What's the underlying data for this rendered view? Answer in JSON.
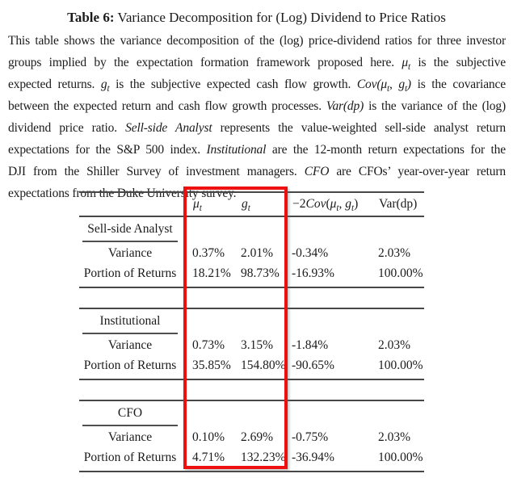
{
  "title": {
    "label": "Table 6:",
    "text": " Variance Decomposition for (Log) Dividend to Price Ratios"
  },
  "description": {
    "lines": [
      [
        {
          "text": "This table shows the variance decomposition of the (log) price-dividend ratios for three investor"
        }
      ],
      [
        {
          "text": "groups implied by the expectation formation framework proposed here. "
        },
        {
          "base": "μ",
          "sub": "t",
          "italic": true
        },
        {
          "text": " is the subjective"
        }
      ],
      [
        {
          "text": "expected returns. "
        },
        {
          "base": "g",
          "sub": "t",
          "italic": true
        },
        {
          "text": " is the subjective expected cash flow growth. "
        },
        {
          "text": "Cov(",
          "italic": true
        },
        {
          "base": "μ",
          "sub": "t",
          "italic": true
        },
        {
          "text": ", ",
          "italic": true
        },
        {
          "base": "g",
          "sub": "t",
          "italic": true
        },
        {
          "text": ")",
          "italic": true
        },
        {
          "text": " is the covariance"
        }
      ],
      [
        {
          "text": "between the expected return and cash flow growth processes. "
        },
        {
          "text": "Var(dp)",
          "italic": true
        },
        {
          "text": " is the variance of the (log)"
        }
      ],
      [
        {
          "text": "dividend price ratio. "
        },
        {
          "text": "Sell-side Analyst",
          "italic": true
        },
        {
          "text": " represents the value-weighted sell-side analyst return"
        }
      ],
      [
        {
          "text": "expectations for the S&P 500 index. "
        },
        {
          "text": "Institutional",
          "italic": true
        },
        {
          "text": " are the 12-month return expectations for the"
        }
      ],
      [
        {
          "text": "DJI from the Shiller Survey of investment managers. "
        },
        {
          "text": "CFO",
          "italic": true
        },
        {
          "text": " are CFOs’ year-over-year return"
        }
      ],
      [
        {
          "text": "expectations from the Duke University survey."
        }
      ]
    ]
  },
  "table": {
    "headers": [
      [],
      [
        {
          "base": "μ",
          "sub": "t",
          "italic": true
        }
      ],
      [
        {
          "base": "g",
          "sub": "t",
          "italic": true
        }
      ],
      [
        {
          "text": "−2"
        },
        {
          "text": "Cov",
          "italic": true
        },
        {
          "text": "("
        },
        {
          "base": "μ",
          "sub": "t",
          "italic": true
        },
        {
          "text": ", "
        },
        {
          "base": "g",
          "sub": "t",
          "italic": true
        },
        {
          "text": ")"
        }
      ],
      [
        {
          "text": "Var(dp)"
        }
      ]
    ],
    "sections": [
      {
        "name": "Sell-side Analyst",
        "rows": [
          {
            "label": "Variance",
            "values": [
              "0.37%",
              "2.01%",
              "-0.34%",
              "2.03%"
            ]
          },
          {
            "label": "Portion of Returns",
            "values": [
              "18.21%",
              "98.73%",
              "-16.93%",
              "100.00%"
            ]
          }
        ]
      },
      {
        "name": "Institutional",
        "rows": [
          {
            "label": "Variance",
            "values": [
              "0.73%",
              "3.15%",
              "-1.84%",
              "2.03%"
            ]
          },
          {
            "label": "Portion of Returns",
            "values": [
              "35.85%",
              "154.80%",
              "-90.65%",
              "100.00%"
            ]
          }
        ]
      },
      {
        "name": "CFO",
        "rows": [
          {
            "label": "Variance",
            "values": [
              "0.10%",
              "2.69%",
              "-0.75%",
              "2.03%"
            ]
          },
          {
            "label": "Portion of Returns",
            "values": [
              "4.71%",
              "132.23%",
              "-36.94%",
              "100.00%"
            ]
          }
        ]
      }
    ]
  },
  "annotation": {
    "type": "highlight-rectangle",
    "color": "#ee0f0f",
    "highlights_columns": [
      "μt",
      "gt"
    ]
  }
}
